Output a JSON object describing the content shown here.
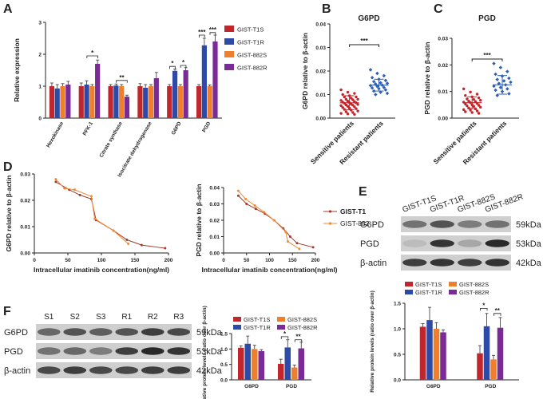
{
  "panels": {
    "A": "A",
    "B": "B",
    "C": "C",
    "D": "D",
    "E": "E",
    "F": "F"
  },
  "colors": {
    "t1s": "#c0272d",
    "t1r": "#2c4aa7",
    "s882": "#f07f2d",
    "r882": "#7b2b96",
    "scatterRed": "#c0272d",
    "scatterBlue": "#2f5fb3",
    "lineDark": "#a33a2e",
    "lineOrange": "#f08a33"
  },
  "chart_data": [
    {
      "id": "A",
      "type": "bar",
      "title": "",
      "ylabel": "Relative expression",
      "ylim": [
        0,
        3
      ],
      "yticks": [
        "0",
        "1",
        "2",
        "3"
      ],
      "categories": [
        "Hexokinase",
        "PFK-1",
        "Citrate synthase",
        "Isocitrate dehydrogenase",
        "G6PD",
        "PGD"
      ],
      "legend": [
        "GIST-T1S",
        "GIST-T1R",
        "GIST-882S",
        "GIST-882R"
      ],
      "series": [
        {
          "name": "GIST-T1S",
          "values": [
            1.0,
            1.0,
            1.0,
            1.0,
            1.0,
            1.0
          ],
          "errors": [
            0.1,
            0.1,
            0.05,
            0.08,
            0.05,
            0.05
          ]
        },
        {
          "name": "GIST-T1R",
          "values": [
            0.93,
            1.05,
            1.02,
            0.95,
            1.48,
            2.28
          ],
          "errors": [
            0.12,
            0.12,
            0.05,
            0.1,
            0.06,
            0.22
          ]
        },
        {
          "name": "GIST-882S",
          "values": [
            1.0,
            1.0,
            1.0,
            1.0,
            1.0,
            1.0
          ],
          "errors": [
            0.08,
            0.05,
            0.05,
            0.05,
            0.05,
            0.04
          ]
        },
        {
          "name": "GIST-882R",
          "values": [
            1.05,
            1.7,
            0.67,
            1.25,
            1.5,
            2.4
          ],
          "errors": [
            0.1,
            0.12,
            0.05,
            0.18,
            0.08,
            0.2
          ]
        }
      ],
      "annotations": [
        {
          "group": 1,
          "text": "*"
        },
        {
          "group": 2,
          "text": "**"
        },
        {
          "group": 4,
          "text": "*"
        },
        {
          "group": 4,
          "text": "*"
        },
        {
          "group": 5,
          "text": "***"
        },
        {
          "group": 5,
          "text": "***"
        }
      ]
    },
    {
      "id": "B",
      "type": "scatter",
      "title": "G6PD",
      "ylabel": "G6PD relative to β-actin",
      "ylim": [
        0,
        0.04
      ],
      "yticks": [
        "0.00",
        "0.01",
        "0.02",
        "0.03",
        "0.04"
      ],
      "categories": [
        "Sensitive patients",
        "Resistant patients"
      ],
      "groups": [
        {
          "name": "Sensitive patients",
          "mean": 0.0065,
          "sd": 0.003,
          "values": [
            0.012,
            0.011,
            0.0105,
            0.01,
            0.0095,
            0.009,
            0.009,
            0.0085,
            0.008,
            0.008,
            0.0078,
            0.0075,
            0.0072,
            0.007,
            0.0068,
            0.0066,
            0.0065,
            0.0063,
            0.006,
            0.0058,
            0.0056,
            0.0055,
            0.0053,
            0.005,
            0.0048,
            0.0045,
            0.0042,
            0.004,
            0.0037,
            0.0034,
            0.003,
            0.0027,
            0.0024,
            0.002,
            0.0018,
            0.0016
          ]
        },
        {
          "name": "Resistant patients",
          "mean": 0.014,
          "sd": 0.0025,
          "values": [
            0.0205,
            0.019,
            0.018,
            0.0172,
            0.0165,
            0.016,
            0.0155,
            0.015,
            0.0148,
            0.0145,
            0.014,
            0.0138,
            0.0135,
            0.013,
            0.0128,
            0.0125,
            0.012,
            0.0115,
            0.011,
            0.0105,
            0.01
          ]
        }
      ],
      "significance": "***"
    },
    {
      "id": "C",
      "type": "scatter",
      "title": "PGD",
      "ylabel": "PGD relative to β-actin",
      "ylim": [
        0,
        0.03
      ],
      "yticks": [
        "0.00",
        "0.01",
        "0.02",
        "0.03"
      ],
      "categories": [
        "Sensitive patients",
        "Resistant patients"
      ],
      "groups": [
        {
          "name": "Sensitive patients",
          "mean": 0.0058,
          "sd": 0.0022,
          "values": [
            0.011,
            0.0098,
            0.009,
            0.0085,
            0.008,
            0.0076,
            0.0072,
            0.007,
            0.0067,
            0.0064,
            0.0062,
            0.006,
            0.0058,
            0.0055,
            0.0053,
            0.005,
            0.0048,
            0.0046,
            0.0044,
            0.0041,
            0.0038,
            0.0035,
            0.0032,
            0.003,
            0.0027,
            0.0024,
            0.0021,
            0.0018
          ]
        },
        {
          "name": "Resistant patients",
          "mean": 0.0125,
          "sd": 0.0035,
          "values": [
            0.0205,
            0.019,
            0.0175,
            0.0165,
            0.0158,
            0.015,
            0.0145,
            0.014,
            0.0135,
            0.013,
            0.0125,
            0.012,
            0.0115,
            0.011,
            0.0105,
            0.01,
            0.0092,
            0.0085
          ]
        }
      ],
      "significance": "***"
    },
    {
      "id": "D1",
      "type": "line",
      "xlabel": "Intracellular imatinib concentration(ng/ml)",
      "ylabel": "G6PD relative to β-actin",
      "xlim": [
        0,
        200
      ],
      "ylim": [
        0,
        0.03
      ],
      "xticks": [
        "0",
        "50",
        "100",
        "150",
        "200"
      ],
      "yticks": [
        "0.00",
        "0.01",
        "0.02",
        "0.03"
      ],
      "series": [
        {
          "name": "GIST-T1",
          "x": [
            32,
            52,
            68,
            85,
            92,
            118,
            138,
            160,
            195
          ],
          "y": [
            0.027,
            0.024,
            0.022,
            0.0205,
            0.0125,
            0.0085,
            0.005,
            0.003,
            0.0018
          ]
        },
        {
          "name": "GIST-882",
          "x": [
            32,
            45,
            60,
            85,
            90,
            118,
            140
          ],
          "y": [
            0.028,
            0.0245,
            0.024,
            0.0215,
            0.013,
            0.0085,
            0.0035
          ]
        }
      ]
    },
    {
      "id": "D2",
      "type": "line",
      "xlabel": "Intracellular imatinib concentration(ng/ml)",
      "ylabel": "PGD relative to β-actin",
      "xlim": [
        0,
        200
      ],
      "ylim": [
        0,
        0.04
      ],
      "xticks": [
        "0",
        "50",
        "100",
        "150",
        "200"
      ],
      "yticks": [
        "0.00",
        "0.01",
        "0.02",
        "0.03",
        "0.04"
      ],
      "legend": [
        "GIST-T1",
        "GIST-882"
      ],
      "series": [
        {
          "name": "GIST-T1",
          "x": [
            32,
            50,
            70,
            90,
            110,
            130,
            145,
            160,
            195
          ],
          "y": [
            0.035,
            0.03,
            0.027,
            0.024,
            0.02,
            0.015,
            0.01,
            0.006,
            0.0035
          ]
        },
        {
          "name": "GIST-882",
          "x": [
            32,
            48,
            68,
            88,
            110,
            135,
            140,
            165
          ],
          "y": [
            0.038,
            0.033,
            0.029,
            0.025,
            0.02,
            0.013,
            0.007,
            0.0025
          ]
        }
      ]
    },
    {
      "id": "E",
      "type": "bar",
      "ylabel": "Relative protein levels (ratio over β-actin)",
      "ylim": [
        0,
        1.5
      ],
      "yticks": [
        "0.0",
        "0.5",
        "1.0",
        "1.5"
      ],
      "categories": [
        "G6PD",
        "PGD"
      ],
      "legend": [
        "GIST-T1S",
        "GIST-882S",
        "GIST-T1R",
        "GIST-882R"
      ],
      "series": [
        {
          "name": "GIST-T1S",
          "values": [
            1.04,
            0.52
          ],
          "errors": [
            0.06,
            0.15
          ]
        },
        {
          "name": "GIST-T1R",
          "values": [
            1.17,
            1.05
          ],
          "errors": [
            0.25,
            0.25
          ]
        },
        {
          "name": "GIST-882S",
          "values": [
            1.0,
            0.4
          ],
          "errors": [
            0.12,
            0.08
          ]
        },
        {
          "name": "GIST-882R",
          "values": [
            0.93,
            1.02
          ],
          "errors": [
            0.05,
            0.2
          ]
        }
      ],
      "annotations": [
        {
          "group": 1,
          "text": "*"
        },
        {
          "group": 1,
          "text": "**"
        }
      ]
    },
    {
      "id": "F",
      "type": "bar",
      "ylabel": "Relative protein levels (ratio over β-actin)",
      "ylim": [
        0,
        1.5
      ],
      "yticks": [
        "0.0",
        "0.5",
        "1.0",
        "1.5"
      ],
      "categories": [
        "G6PD",
        "PGD"
      ],
      "legend": [
        "GIST-T1S",
        "GIST-882S",
        "GIST-T1R",
        "GIST-882R"
      ],
      "series": [
        {
          "name": "GIST-T1S",
          "values": [
            1.04,
            0.52
          ],
          "errors": [
            0.06,
            0.15
          ]
        },
        {
          "name": "GIST-T1R",
          "values": [
            1.17,
            1.05
          ],
          "errors": [
            0.25,
            0.25
          ]
        },
        {
          "name": "GIST-882S",
          "values": [
            1.0,
            0.4
          ],
          "errors": [
            0.12,
            0.08
          ]
        },
        {
          "name": "GIST-882R",
          "values": [
            0.93,
            1.02
          ],
          "errors": [
            0.05,
            0.2
          ]
        }
      ],
      "annotations": [
        {
          "group": 1,
          "text": "*"
        },
        {
          "group": 1,
          "text": "**"
        }
      ]
    }
  ],
  "blotE": {
    "lanes": [
      "GIST-T1S",
      "GIST-T1R",
      "GIST-882S",
      "GIST-882R"
    ],
    "rows": [
      {
        "label": "G6PD",
        "kda": "59kDa",
        "intensity": [
          0.55,
          0.7,
          0.5,
          0.55
        ]
      },
      {
        "label": "PGD",
        "kda": "53kDa",
        "intensity": [
          0.2,
          0.85,
          0.3,
          0.9
        ]
      },
      {
        "label": "β-actin",
        "kda": "42kDa",
        "intensity": [
          0.8,
          0.85,
          0.8,
          0.85
        ]
      }
    ]
  },
  "blotF": {
    "lanes": [
      "S1",
      "S2",
      "S3",
      "R1",
      "R2",
      "R3"
    ],
    "rows": [
      {
        "label": "G6PD",
        "kda": "59kDa",
        "intensity": [
          0.6,
          0.7,
          0.65,
          0.7,
          0.8,
          0.75
        ]
      },
      {
        "label": "PGD",
        "kda": "53kDa",
        "intensity": [
          0.55,
          0.6,
          0.5,
          0.8,
          0.9,
          0.85
        ]
      },
      {
        "label": "β-actin",
        "kda": "42kDa",
        "intensity": [
          0.75,
          0.8,
          0.75,
          0.75,
          0.8,
          0.8
        ]
      }
    ]
  }
}
